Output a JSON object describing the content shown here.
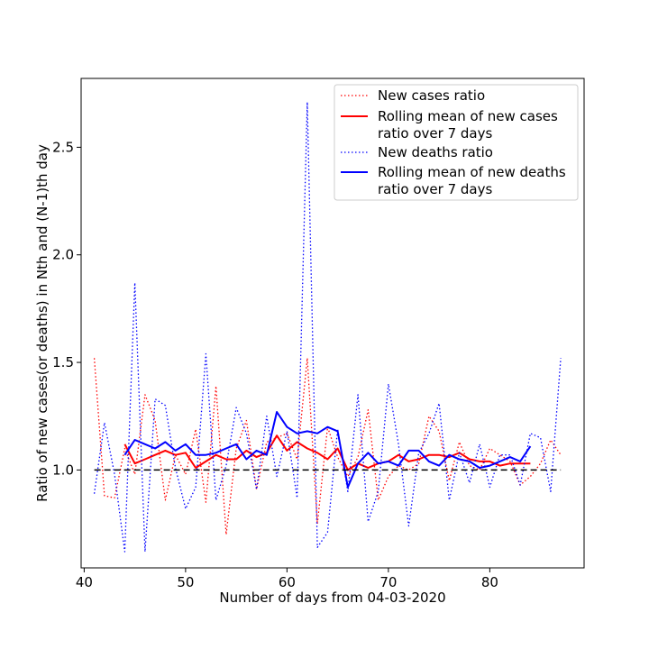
{
  "chart_data": {
    "type": "line",
    "xlabel": "Number of days from 04-03-2020",
    "ylabel": "Ratio of new cases(or deaths) in Nth and (N-1)th day",
    "xlim": [
      39.7,
      89.3
    ],
    "ylim": [
      0.545,
      2.82
    ],
    "x_ticks": [
      40,
      50,
      60,
      70,
      80
    ],
    "y_ticks": [
      1.0,
      1.5,
      2.0,
      2.5
    ],
    "x_tick_labels": [
      "40",
      "50",
      "60",
      "70",
      "80"
    ],
    "y_tick_labels": [
      "1.0",
      "1.5",
      "2.0",
      "2.5"
    ],
    "grid": false,
    "legend_position": "top-right",
    "reference_line": {
      "y": 1.0,
      "x_start": 41,
      "x_end": 87,
      "color": "#000000",
      "style": "dashed"
    },
    "series": [
      {
        "name": "New cases ratio",
        "color": "#ff0000",
        "style": "dotted",
        "x": [
          41,
          42,
          43,
          44,
          45,
          46,
          47,
          48,
          49,
          50,
          51,
          52,
          53,
          54,
          55,
          56,
          57,
          58,
          59,
          60,
          61,
          62,
          63,
          64,
          65,
          66,
          67,
          68,
          69,
          70,
          71,
          72,
          73,
          74,
          75,
          76,
          77,
          78,
          79,
          80,
          81,
          82,
          83,
          84,
          85,
          86,
          87
        ],
        "y": [
          1.52,
          0.88,
          0.87,
          1.1,
          0.98,
          1.35,
          1.23,
          0.86,
          1.07,
          0.98,
          1.19,
          0.85,
          1.39,
          0.7,
          1.1,
          1.23,
          0.91,
          1.13,
          1.15,
          1.17,
          1.05,
          1.52,
          0.75,
          1.2,
          1.06,
          0.97,
          1.06,
          1.28,
          0.86,
          0.97,
          1.02,
          1.0,
          1.03,
          1.25,
          1.18,
          0.95,
          1.13,
          1.02,
          1.0,
          1.1,
          1.07,
          1.04,
          0.93,
          0.97,
          1.03,
          1.14,
          1.07
        ]
      },
      {
        "name": "Rolling mean of new cases ratio over 7 days",
        "color": "#ff0000",
        "style": "solid",
        "x": [
          44,
          45,
          46,
          47,
          48,
          49,
          50,
          51,
          52,
          53,
          54,
          55,
          56,
          57,
          58,
          59,
          60,
          61,
          62,
          63,
          64,
          65,
          66,
          67,
          68,
          69,
          70,
          71,
          72,
          73,
          74,
          75,
          76,
          77,
          78,
          79,
          80,
          81,
          82,
          83,
          84
        ],
        "y": [
          1.12,
          1.03,
          1.05,
          1.07,
          1.09,
          1.07,
          1.08,
          1.01,
          1.04,
          1.07,
          1.05,
          1.05,
          1.09,
          1.06,
          1.08,
          1.16,
          1.09,
          1.13,
          1.1,
          1.08,
          1.05,
          1.1,
          1.0,
          1.03,
          1.01,
          1.03,
          1.04,
          1.07,
          1.04,
          1.05,
          1.07,
          1.07,
          1.06,
          1.08,
          1.05,
          1.04,
          1.04,
          1.02,
          1.03,
          1.03,
          1.03
        ]
      },
      {
        "name": "New deaths ratio",
        "color": "#0000ff",
        "style": "dotted",
        "x": [
          41,
          42,
          43,
          44,
          45,
          46,
          47,
          48,
          49,
          50,
          51,
          52,
          53,
          54,
          55,
          56,
          57,
          58,
          59,
          60,
          61,
          62,
          63,
          64,
          65,
          66,
          67,
          68,
          69,
          70,
          71,
          72,
          73,
          74,
          75,
          76,
          77,
          78,
          79,
          80,
          81,
          82,
          83,
          84,
          85,
          86,
          87
        ],
        "y": [
          0.89,
          1.22,
          0.98,
          0.62,
          1.87,
          0.62,
          1.33,
          1.3,
          1.01,
          0.82,
          0.92,
          1.54,
          0.86,
          1.02,
          1.29,
          1.17,
          0.91,
          1.25,
          0.97,
          1.18,
          0.87,
          2.71,
          0.64,
          0.71,
          1.19,
          0.9,
          1.35,
          0.76,
          0.9,
          1.4,
          1.12,
          0.74,
          1.08,
          1.17,
          1.31,
          0.86,
          1.08,
          0.94,
          1.12,
          0.92,
          1.07,
          1.07,
          0.93,
          1.17,
          1.15,
          0.9,
          1.52
        ]
      },
      {
        "name": "Rolling mean of new deaths ratio over 7 days",
        "color": "#0000ff",
        "style": "solid",
        "x": [
          44,
          45,
          46,
          47,
          48,
          49,
          50,
          51,
          52,
          53,
          54,
          55,
          56,
          57,
          58,
          59,
          60,
          61,
          62,
          63,
          64,
          65,
          66,
          67,
          68,
          69,
          70,
          71,
          72,
          73,
          74,
          75,
          76,
          77,
          78,
          79,
          80,
          81,
          82,
          83,
          84
        ],
        "y": [
          1.07,
          1.14,
          1.12,
          1.1,
          1.13,
          1.09,
          1.12,
          1.07,
          1.07,
          1.08,
          1.1,
          1.12,
          1.05,
          1.09,
          1.07,
          1.27,
          1.2,
          1.17,
          1.18,
          1.17,
          1.2,
          1.18,
          0.92,
          1.03,
          1.08,
          1.03,
          1.04,
          1.02,
          1.09,
          1.09,
          1.04,
          1.02,
          1.07,
          1.05,
          1.04,
          1.01,
          1.02,
          1.04,
          1.06,
          1.04,
          1.11
        ]
      }
    ],
    "legend": [
      {
        "label_lines": [
          "New cases ratio"
        ],
        "series": 0
      },
      {
        "label_lines": [
          "Rolling mean of new cases",
          "ratio over 7 days"
        ],
        "series": 1
      },
      {
        "label_lines": [
          "New deaths ratio"
        ],
        "series": 2
      },
      {
        "label_lines": [
          "Rolling mean of new deaths",
          "ratio over 7 days"
        ],
        "series": 3
      }
    ]
  }
}
